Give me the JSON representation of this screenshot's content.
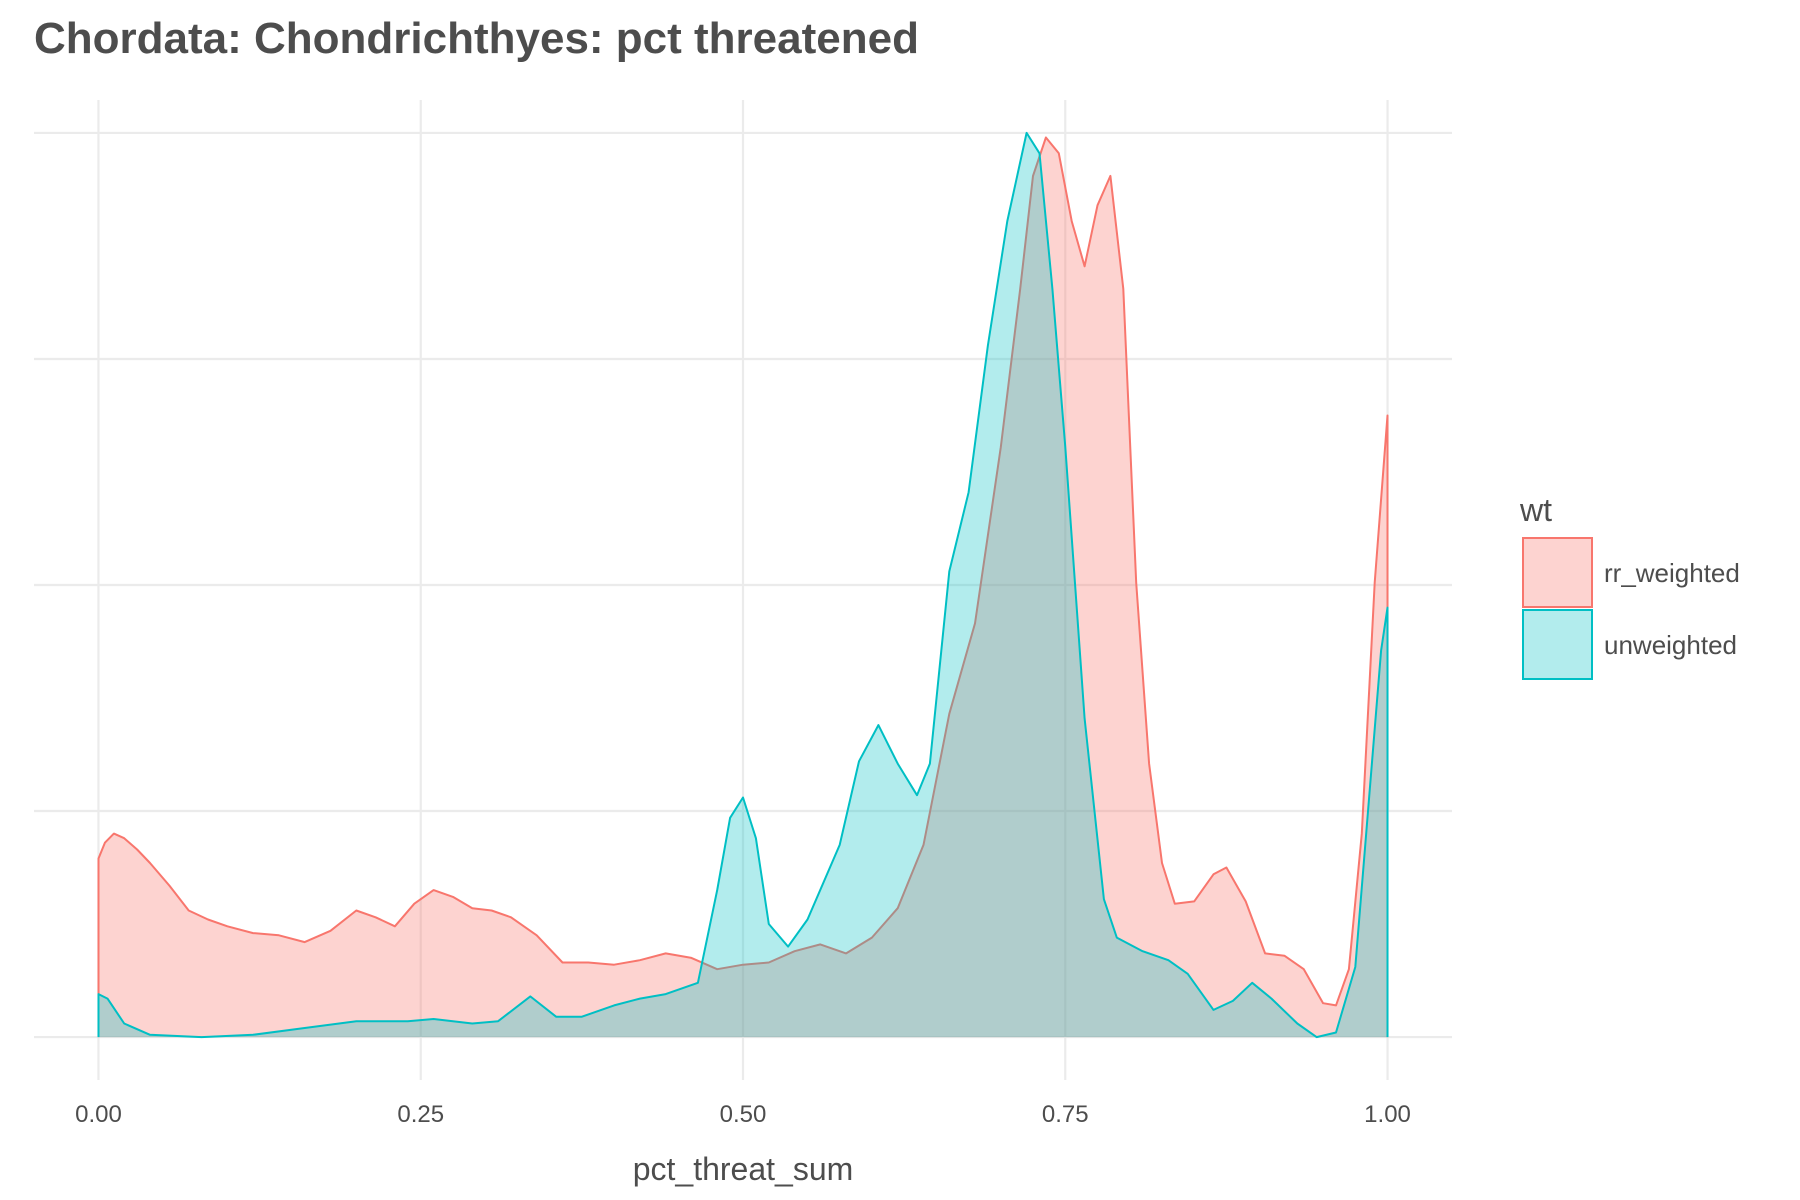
{
  "chart_data": {
    "type": "area",
    "title": "Chordata: Chondrichthyes: pct threatened",
    "xlabel": "pct_threat_sum",
    "ylabel": "",
    "xlim": [
      -0.05,
      1.05
    ],
    "ylim": [
      -0.19,
      4.19
    ],
    "x_ticks": [
      0,
      0.25,
      0.5,
      0.75,
      1
    ],
    "x_tick_labels": [
      "0.00",
      "0.25",
      "0.50",
      "0.75",
      "1.00"
    ],
    "y_gridlines": [
      0,
      1,
      2,
      3,
      4
    ],
    "y_tick_labels": [],
    "grid": true,
    "legend": {
      "title": "wt",
      "position": "right"
    },
    "series": [
      {
        "name": "rr_weighted",
        "line_color": "#F8766D",
        "fill_color": "#F8766D",
        "fill_opacity": 0.32,
        "points": [
          [
            0,
            0
          ],
          [
            0,
            0.79
          ],
          [
            0.005,
            0.86
          ],
          [
            0.012,
            0.9
          ],
          [
            0.02,
            0.88
          ],
          [
            0.03,
            0.83
          ],
          [
            0.04,
            0.77
          ],
          [
            0.055,
            0.67
          ],
          [
            0.07,
            0.56
          ],
          [
            0.085,
            0.52
          ],
          [
            0.1,
            0.49
          ],
          [
            0.12,
            0.46
          ],
          [
            0.14,
            0.45
          ],
          [
            0.16,
            0.42
          ],
          [
            0.18,
            0.47
          ],
          [
            0.2,
            0.56
          ],
          [
            0.215,
            0.53
          ],
          [
            0.23,
            0.49
          ],
          [
            0.245,
            0.59
          ],
          [
            0.26,
            0.65
          ],
          [
            0.275,
            0.62
          ],
          [
            0.29,
            0.57
          ],
          [
            0.305,
            0.56
          ],
          [
            0.32,
            0.53
          ],
          [
            0.34,
            0.45
          ],
          [
            0.36,
            0.33
          ],
          [
            0.38,
            0.33
          ],
          [
            0.4,
            0.32
          ],
          [
            0.42,
            0.34
          ],
          [
            0.44,
            0.37
          ],
          [
            0.46,
            0.35
          ],
          [
            0.48,
            0.3
          ],
          [
            0.5,
            0.32
          ],
          [
            0.52,
            0.33
          ],
          [
            0.54,
            0.38
          ],
          [
            0.56,
            0.41
          ],
          [
            0.58,
            0.37
          ],
          [
            0.6,
            0.44
          ],
          [
            0.62,
            0.57
          ],
          [
            0.64,
            0.85
          ],
          [
            0.66,
            1.43
          ],
          [
            0.68,
            1.83
          ],
          [
            0.7,
            2.61
          ],
          [
            0.715,
            3.31
          ],
          [
            0.725,
            3.81
          ],
          [
            0.735,
            3.98
          ],
          [
            0.745,
            3.91
          ],
          [
            0.755,
            3.61
          ],
          [
            0.765,
            3.41
          ],
          [
            0.775,
            3.68
          ],
          [
            0.785,
            3.81
          ],
          [
            0.795,
            3.31
          ],
          [
            0.805,
            2.01
          ],
          [
            0.815,
            1.21
          ],
          [
            0.825,
            0.77
          ],
          [
            0.835,
            0.59
          ],
          [
            0.85,
            0.6
          ],
          [
            0.865,
            0.72
          ],
          [
            0.875,
            0.75
          ],
          [
            0.89,
            0.6
          ],
          [
            0.905,
            0.37
          ],
          [
            0.92,
            0.36
          ],
          [
            0.935,
            0.3
          ],
          [
            0.95,
            0.15
          ],
          [
            0.96,
            0.14
          ],
          [
            0.97,
            0.3
          ],
          [
            0.98,
            0.9
          ],
          [
            0.99,
            2.01
          ],
          [
            1.0,
            2.75
          ],
          [
            1.0,
            0
          ]
        ]
      },
      {
        "name": "unweighted",
        "line_color": "#00BFC4",
        "fill_color": "#00BFC4",
        "fill_opacity": 0.3,
        "points": [
          [
            0,
            0
          ],
          [
            0,
            0.19
          ],
          [
            0.007,
            0.17
          ],
          [
            0.02,
            0.06
          ],
          [
            0.04,
            0.01
          ],
          [
            0.08,
            0.0
          ],
          [
            0.12,
            0.01
          ],
          [
            0.16,
            0.04
          ],
          [
            0.2,
            0.07
          ],
          [
            0.24,
            0.07
          ],
          [
            0.26,
            0.08
          ],
          [
            0.29,
            0.06
          ],
          [
            0.31,
            0.07
          ],
          [
            0.335,
            0.18
          ],
          [
            0.355,
            0.09
          ],
          [
            0.375,
            0.09
          ],
          [
            0.4,
            0.14
          ],
          [
            0.42,
            0.17
          ],
          [
            0.44,
            0.19
          ],
          [
            0.465,
            0.24
          ],
          [
            0.48,
            0.65
          ],
          [
            0.49,
            0.97
          ],
          [
            0.5,
            1.06
          ],
          [
            0.51,
            0.88
          ],
          [
            0.52,
            0.5
          ],
          [
            0.535,
            0.4
          ],
          [
            0.55,
            0.52
          ],
          [
            0.575,
            0.85
          ],
          [
            0.59,
            1.22
          ],
          [
            0.605,
            1.38
          ],
          [
            0.62,
            1.21
          ],
          [
            0.635,
            1.07
          ],
          [
            0.645,
            1.21
          ],
          [
            0.66,
            2.06
          ],
          [
            0.675,
            2.41
          ],
          [
            0.69,
            3.06
          ],
          [
            0.705,
            3.61
          ],
          [
            0.72,
            4.0
          ],
          [
            0.73,
            3.91
          ],
          [
            0.74,
            3.31
          ],
          [
            0.75,
            2.61
          ],
          [
            0.765,
            1.41
          ],
          [
            0.78,
            0.61
          ],
          [
            0.79,
            0.44
          ],
          [
            0.81,
            0.38
          ],
          [
            0.83,
            0.34
          ],
          [
            0.845,
            0.28
          ],
          [
            0.865,
            0.12
          ],
          [
            0.88,
            0.16
          ],
          [
            0.895,
            0.24
          ],
          [
            0.91,
            0.17
          ],
          [
            0.93,
            0.06
          ],
          [
            0.945,
            0.0
          ],
          [
            0.96,
            0.02
          ],
          [
            0.975,
            0.31
          ],
          [
            0.985,
            1.01
          ],
          [
            0.995,
            1.71
          ],
          [
            1.0,
            1.9
          ],
          [
            1.0,
            0
          ]
        ]
      }
    ]
  }
}
